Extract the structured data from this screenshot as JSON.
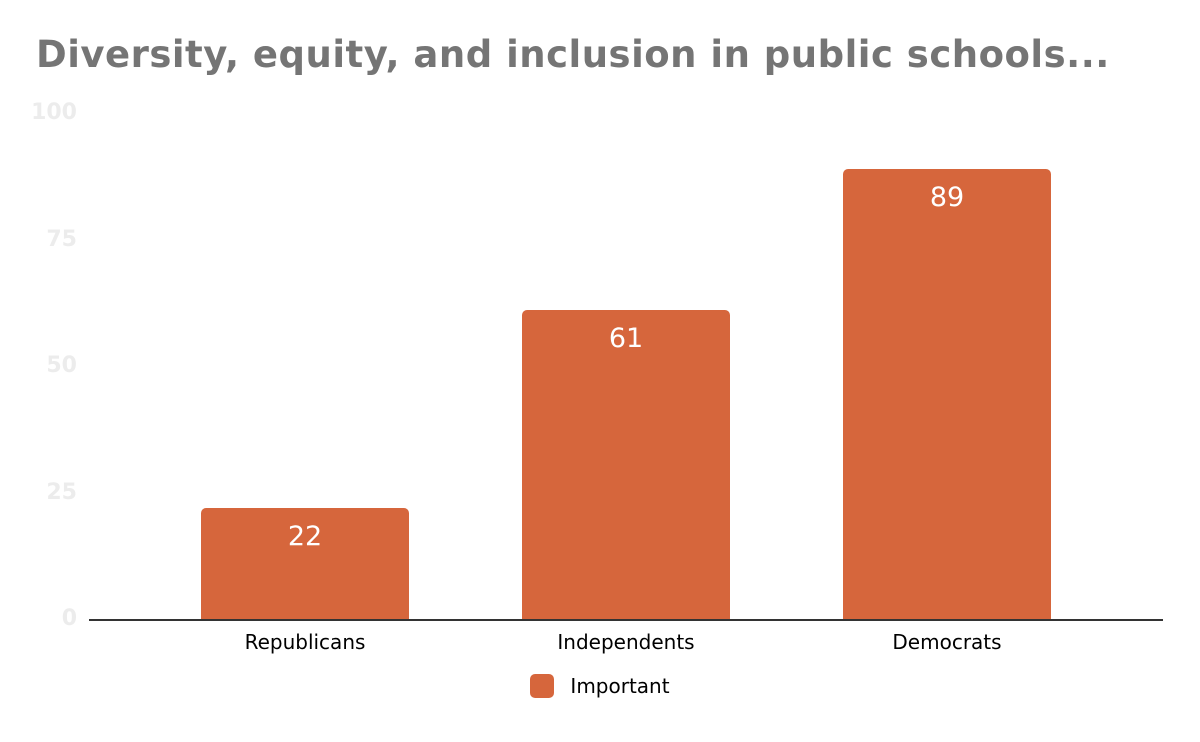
{
  "chart_data": {
    "type": "bar",
    "title": "Diversity, equity, and inclusion in public schools...",
    "categories": [
      "Republicans",
      "Independents",
      "Democrats"
    ],
    "series": [
      {
        "name": "Important",
        "values": [
          22,
          61,
          89
        ]
      }
    ],
    "value_labels": [
      "22",
      "61",
      "89"
    ],
    "ylim": [
      0,
      100
    ],
    "yticks": [
      0,
      25,
      50,
      75,
      100
    ],
    "grid": false,
    "legend_position": "bottom",
    "xlabel": "",
    "ylabel": ""
  },
  "colors": {
    "bar": "#d6663c",
    "title_text": "#757575",
    "axis_line": "#333333",
    "y_tick_label": "#ececec",
    "category_label": "#000000",
    "value_label": "#ffffff",
    "background": "#ffffff"
  }
}
